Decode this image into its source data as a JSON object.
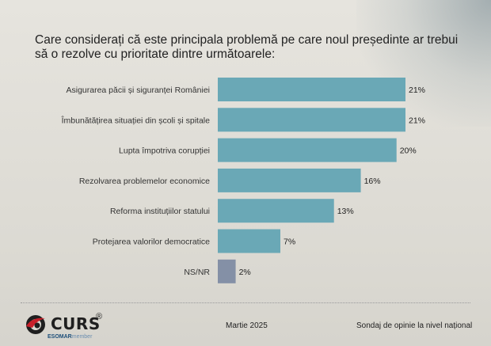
{
  "question": "Care considerați că este principala problemă pe care noul președinte ar trebui să o rezolve cu prioritate dintre următoarele:",
  "chart_data": {
    "type": "bar",
    "orientation": "horizontal",
    "categories": [
      "Asigurarea păcii și siguranței României",
      "Îmbunătățirea situației din școli și spitale",
      "Lupta împotriva corupției",
      "Rezolvarea problemelor economice",
      "Reforma instituțiilor statului",
      "Protejarea valorilor democratice",
      "NS/NR"
    ],
    "values": [
      21,
      21,
      20,
      16,
      13,
      7,
      2
    ],
    "labels": [
      "21%",
      "21%",
      "20%",
      "16%",
      "13%",
      "7%",
      "2%"
    ],
    "unit": "%",
    "xlim": [
      0,
      21
    ],
    "colors": [
      "#6aa8b6",
      "#6aa8b6",
      "#6aa8b6",
      "#6aa8b6",
      "#6aa8b6",
      "#6aa8b6",
      "#8490a6"
    ]
  },
  "footer": {
    "logo_text": "CURS",
    "logo_reg": "®",
    "logo_sub_main": "ESOMAR",
    "logo_sub_tail": "member",
    "date": "Martie 2025",
    "survey": "Sondaj de opinie la nivel național"
  }
}
